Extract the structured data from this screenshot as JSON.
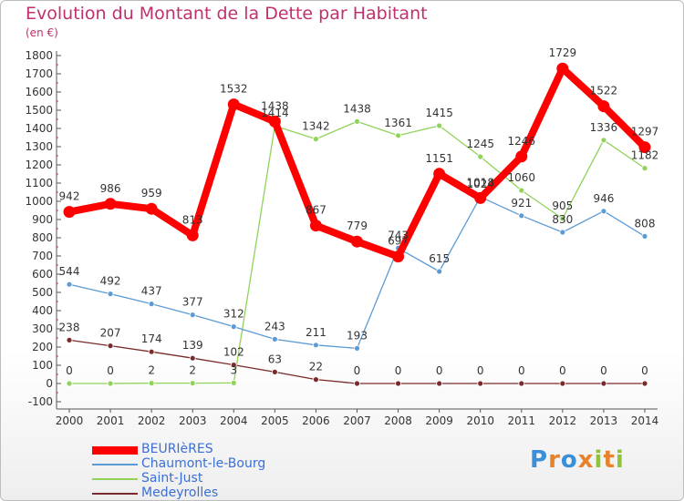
{
  "title": "Evolution du Montant de la Dette par Habitant",
  "unit_label": "(en €)",
  "logo_text": "Proxiti",
  "chart_data": {
    "type": "line",
    "x": [
      "2000",
      "2001",
      "2002",
      "2003",
      "2004",
      "2005",
      "2006",
      "2007",
      "2008",
      "2009",
      "2010",
      "2011",
      "2012",
      "2013",
      "2014"
    ],
    "ylim": [
      -100,
      1800
    ],
    "yticks": [
      -100,
      0,
      100,
      200,
      300,
      400,
      500,
      600,
      700,
      800,
      900,
      1000,
      1100,
      1200,
      1300,
      1400,
      1500,
      1600,
      1700,
      1800
    ],
    "grid": false,
    "legend_position": "bottom-left",
    "series": [
      {
        "name": "BEURIèRES",
        "color": "#ff0000",
        "values": [
          942,
          986,
          959,
          813,
          1532,
          1438,
          867,
          779,
          697,
          1151,
          1018,
          1246,
          1729,
          1522,
          1297
        ],
        "labels": [
          "942",
          "986",
          "959",
          "813",
          "1532",
          "1438",
          "867",
          "779",
          "697",
          "1151",
          "1018",
          "1246",
          "1729",
          "1522",
          "1297"
        ]
      },
      {
        "name": "Chaumont-le-Bourg",
        "color": "#5b9bd5",
        "values": [
          544,
          492,
          437,
          377,
          312,
          243,
          211,
          193,
          743,
          615,
          1024,
          921,
          830,
          946,
          808
        ],
        "labels": [
          "544",
          "492",
          "437",
          "377",
          "312",
          "243",
          "211",
          "193",
          "743",
          "615",
          "1024",
          "921",
          "830",
          "946",
          "808"
        ]
      },
      {
        "name": "Saint-Just",
        "color": "#8fd35a",
        "values": [
          0,
          0,
          2,
          2,
          3,
          1414,
          1342,
          1438,
          1361,
          1415,
          1245,
          1060,
          905,
          1336,
          1182
        ],
        "labels": [
          "0",
          "0",
          "2",
          "2",
          "3",
          "1414",
          "1342",
          "1438",
          "1361",
          "1415",
          "1245",
          "1060",
          "905",
          "1336",
          "1182"
        ]
      },
      {
        "name": "Medeyrolles",
        "color": "#7a2a2a",
        "values": [
          238,
          207,
          174,
          139,
          102,
          63,
          22,
          0,
          0,
          0,
          0,
          0,
          0,
          0,
          0
        ],
        "labels": [
          "238",
          "207",
          "174",
          "139",
          "102",
          "63",
          "22",
          "0",
          "0",
          "0",
          "0",
          "0",
          "0",
          "0",
          "0"
        ]
      }
    ]
  }
}
